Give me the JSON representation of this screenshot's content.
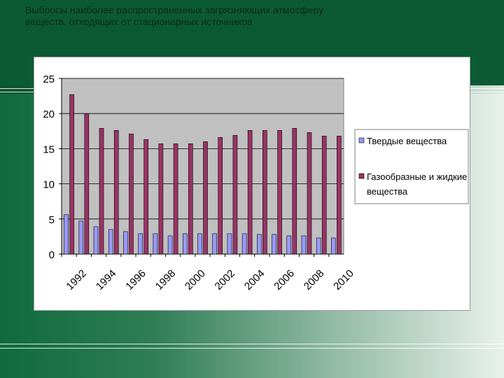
{
  "slide": {
    "title_line1": "Выбросы наиболее распространенных загрязняющих атмосферу",
    "title_line2": "веществ, отходящих от стационарных источников"
  },
  "colors": {
    "solid": "#9999ff",
    "gas": "#993366",
    "plot_bg": "#c0c0c0"
  },
  "chart_data": {
    "type": "bar",
    "title": "",
    "xlabel": "",
    "ylabel": "",
    "ylim": [
      0,
      25
    ],
    "yticks": [
      0,
      5,
      10,
      15,
      20,
      25
    ],
    "grid": true,
    "legend_position": "right",
    "categories": [
      "1992",
      "1993",
      "1994",
      "1995",
      "1996",
      "1997",
      "1998",
      "1999",
      "2000",
      "2001",
      "2002",
      "2003",
      "2004",
      "2005",
      "2006",
      "2007",
      "2008",
      "2009",
      "2010"
    ],
    "xtick_labels": [
      "1992",
      "1994",
      "1996",
      "1998",
      "2000",
      "2002",
      "2004",
      "2006",
      "2008",
      "2010"
    ],
    "series": [
      {
        "name": "Твердые вещества",
        "values": [
          5.6,
          4.7,
          3.9,
          3.5,
          3.2,
          2.9,
          2.9,
          2.6,
          2.9,
          2.9,
          2.9,
          2.9,
          2.9,
          2.8,
          2.8,
          2.6,
          2.6,
          2.3,
          2.3
        ]
      },
      {
        "name": "Газообразные и жидкие вещества",
        "values": [
          22.7,
          20.0,
          17.9,
          17.6,
          17.1,
          16.3,
          15.7,
          15.7,
          15.7,
          16.0,
          16.6,
          16.9,
          17.6,
          17.6,
          17.6,
          17.9,
          17.3,
          16.8,
          16.8
        ]
      }
    ]
  }
}
